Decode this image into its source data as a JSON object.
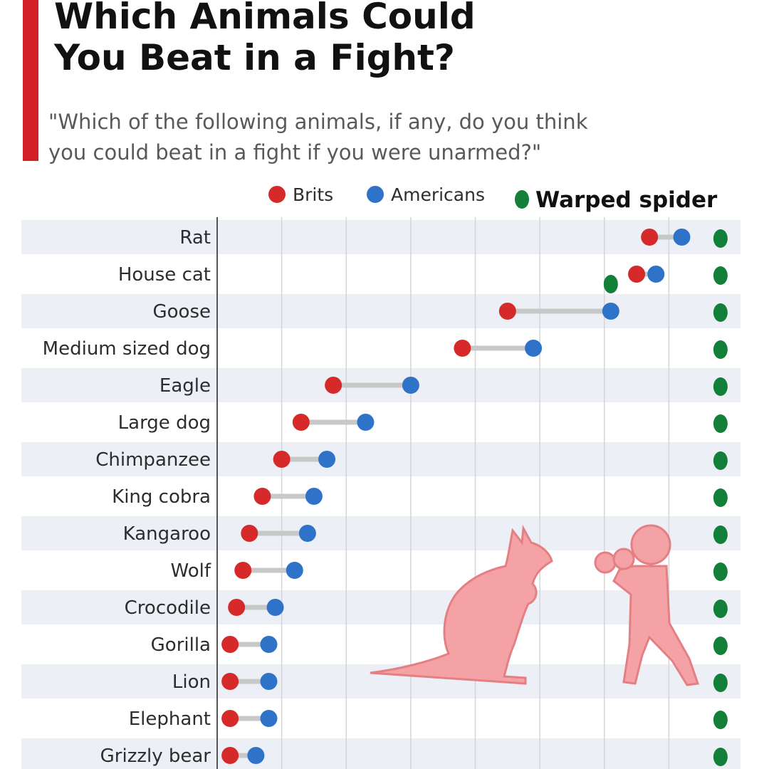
{
  "header": {
    "title": "Which Animals Could\nYou Beat in a Fight?",
    "subtitle": "\"Which of the following animals, if any, do you think\nyou could beat in a fight if you were unarmed?\""
  },
  "colors": {
    "accent": "#d21f26",
    "brits": "#d62a2a",
    "americans": "#2f73c9",
    "spider": "#128038",
    "connector": "#c8c8c8",
    "stripe": "#eceff5",
    "illustration": "#f4a2a5"
  },
  "illustration": {
    "icons": [
      "kangaroo-icon",
      "boxer-icon"
    ]
  },
  "chart_data": {
    "type": "dot-range",
    "legend_position": "top-right",
    "grid": true,
    "xlim": [
      0,
      80
    ],
    "series": [
      {
        "name": "Brits",
        "color": "#d62a2a",
        "values": [
          67,
          65,
          45,
          38,
          18,
          13,
          10,
          7,
          5,
          4,
          3,
          2,
          2,
          2,
          2
        ]
      },
      {
        "name": "Americans",
        "color": "#2f73c9",
        "values": [
          72,
          68,
          61,
          49,
          30,
          23,
          17,
          15,
          14,
          12,
          9,
          8,
          8,
          8,
          6
        ]
      },
      {
        "name": "Warped spider",
        "color": "#128038",
        "values": [
          78,
          78,
          78,
          78,
          78,
          78,
          78,
          78,
          78,
          78,
          78,
          78,
          78,
          78,
          78
        ],
        "extra_point": {
          "category": "House cat",
          "value": 61
        }
      }
    ],
    "categories": [
      "Rat",
      "House cat",
      "Goose",
      "Medium sized dog",
      "Eagle",
      "Large dog",
      "Chimpanzee",
      "King cobra",
      "Kangaroo",
      "Wolf",
      "Crocodile",
      "Gorilla",
      "Lion",
      "Elephant",
      "Grizzly bear"
    ]
  }
}
